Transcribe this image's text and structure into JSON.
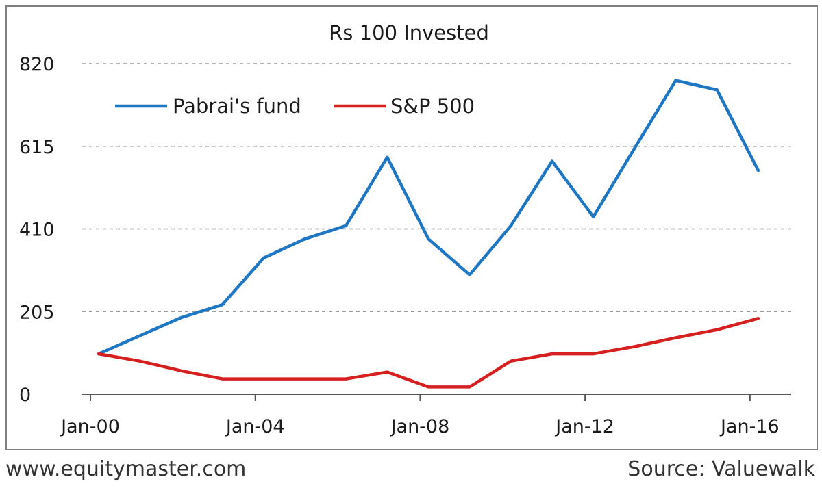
{
  "chart_data": {
    "type": "line",
    "title": "Rs 100 Invested",
    "x_tick_labels": [
      "Jan-00",
      "Jan-04",
      "Jan-08",
      "Jan-12",
      "Jan-16"
    ],
    "x_range": [
      1999.8,
      2017.0
    ],
    "ylim": [
      0,
      820
    ],
    "y_ticks": [
      0,
      205,
      410,
      615,
      820
    ],
    "grid": true,
    "legend_position": "top-left",
    "series": [
      {
        "name": "Pabrai's fund",
        "color": "#1f77c4",
        "x": [
          2000.2,
          2001.2,
          2002.2,
          2003.2,
          2004.2,
          2005.2,
          2006.2,
          2007.2,
          2008.2,
          2009.2,
          2010.2,
          2011.2,
          2012.2,
          2013.2,
          2014.2,
          2015.2,
          2016.2
        ],
        "values": [
          100,
          145,
          190,
          222,
          338,
          385,
          418,
          588,
          385,
          296,
          418,
          578,
          440,
          610,
          778,
          755,
          555
        ]
      },
      {
        "name": "S&P 500",
        "color": "#d62020",
        "x": [
          2000.2,
          2001.2,
          2002.2,
          2003.2,
          2004.2,
          2005.2,
          2006.2,
          2007.2,
          2008.2,
          2009.2,
          2010.2,
          2011.2,
          2012.2,
          2013.2,
          2014.2,
          2015.2,
          2016.2
        ],
        "values": [
          100,
          82,
          58,
          38,
          38,
          38,
          38,
          55,
          18,
          18,
          82,
          100,
          100,
          118,
          140,
          160,
          188
        ]
      }
    ]
  },
  "footer": {
    "left": "www.equitymaster.com",
    "right": "Source: Valuewalk"
  }
}
